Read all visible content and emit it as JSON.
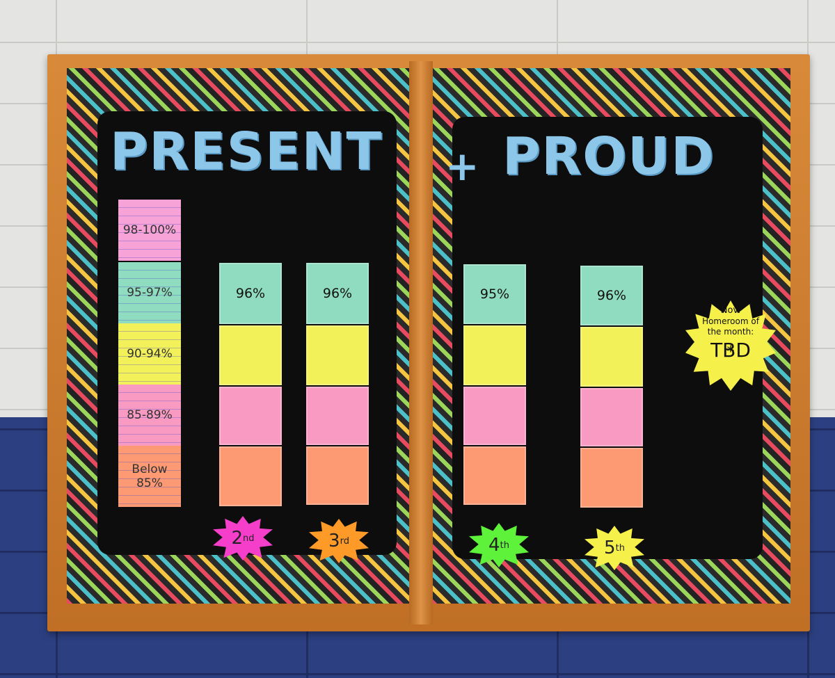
{
  "title": {
    "word1": "PRESENT",
    "plus": "+",
    "word2": "PROUD"
  },
  "legend": [
    {
      "label": "98-100%",
      "color": "#f7a3d8"
    },
    {
      "label": "95-97%",
      "color": "#8fdcc0"
    },
    {
      "label": "90-94%",
      "color": "#f2f15a"
    },
    {
      "label": "85-89%",
      "color": "#f99ac2"
    },
    {
      "label": "Below 85%",
      "color": "#fd9a73"
    }
  ],
  "grades": [
    {
      "label": "2nd",
      "base": "2",
      "suffix": "nd",
      "percent": "96%",
      "burst_color": "#f53fcb"
    },
    {
      "label": "3rd",
      "base": "3",
      "suffix": "rd",
      "percent": "96%",
      "burst_color": "#fd9a28"
    },
    {
      "label": "4th",
      "base": "4",
      "suffix": "th",
      "percent": "95%",
      "burst_color": "#5ff23a"
    },
    {
      "label": "5th",
      "base": "5",
      "suffix": "th",
      "percent": "96%",
      "burst_color": "#f6f04a"
    }
  ],
  "homeroom": {
    "month": "Nov.",
    "line1": "Homeroom of",
    "line2": "the month:",
    "value": "TBD",
    "star": "*"
  }
}
